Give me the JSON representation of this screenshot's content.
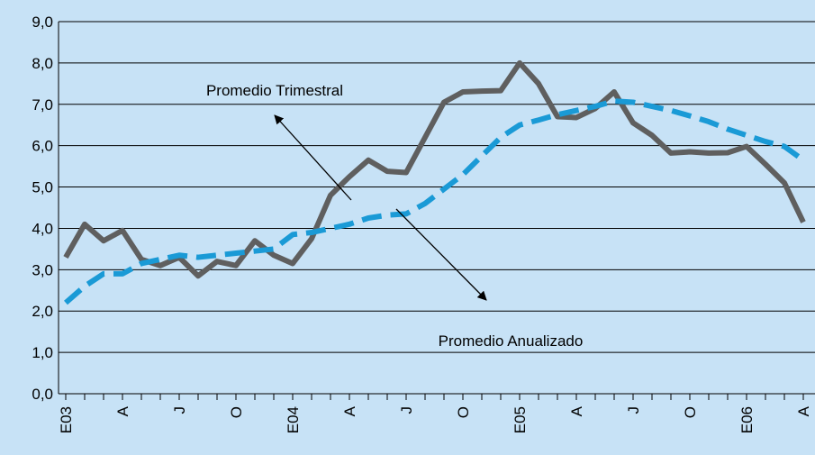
{
  "chart_data": {
    "type": "line",
    "categories": [
      "E03",
      null,
      null,
      "A",
      null,
      null,
      "J",
      null,
      null,
      "O",
      null,
      null,
      "E04",
      null,
      null,
      "A",
      null,
      null,
      "J",
      null,
      null,
      "O",
      null,
      null,
      "E05",
      null,
      null,
      "A",
      null,
      null,
      "J",
      null,
      null,
      "O",
      null,
      null,
      "E06",
      null,
      null,
      "A"
    ],
    "series": [
      {
        "name": "Promedio Trimestral",
        "color": "#5f5f5f",
        "values": [
          3.3,
          4.1,
          3.7,
          3.95,
          3.25,
          3.1,
          3.3,
          2.85,
          3.2,
          3.1,
          3.7,
          3.35,
          3.15,
          3.75,
          4.8,
          5.25,
          5.65,
          5.38,
          5.35,
          6.2,
          7.05,
          7.3,
          7.32,
          7.33,
          8.0,
          7.5,
          6.7,
          6.68,
          6.9,
          7.3,
          6.55,
          6.25,
          5.82,
          5.85,
          5.82,
          5.83,
          5.98,
          5.55,
          5.1,
          4.15
        ]
      },
      {
        "name": "Promedio Anualizado",
        "color": "#1a9ad6",
        "dashed": true,
        "values": [
          2.2,
          2.6,
          2.9,
          2.9,
          3.15,
          3.25,
          3.35,
          3.3,
          3.35,
          3.4,
          3.45,
          3.5,
          3.85,
          3.9,
          4.0,
          4.1,
          4.25,
          4.32,
          4.35,
          4.6,
          4.95,
          5.3,
          5.75,
          6.2,
          6.5,
          6.62,
          6.75,
          6.85,
          6.95,
          7.08,
          7.05,
          6.95,
          6.85,
          6.72,
          6.58,
          6.4,
          6.25,
          6.1,
          5.98,
          5.65
        ]
      }
    ],
    "ylim": [
      0,
      9
    ],
    "yticks": [
      {
        "value": 0,
        "label": "0,0"
      },
      {
        "value": 1,
        "label": "1,0"
      },
      {
        "value": 2,
        "label": "2,0"
      },
      {
        "value": 3,
        "label": "3,0"
      },
      {
        "value": 4,
        "label": "4,0"
      },
      {
        "value": 5,
        "label": "5,0"
      },
      {
        "value": 6,
        "label": "6,0"
      },
      {
        "value": 7,
        "label": "7,0"
      },
      {
        "value": 8,
        "label": "8,0"
      },
      {
        "value": 9,
        "label": "9,0"
      }
    ],
    "grid": true
  }
}
